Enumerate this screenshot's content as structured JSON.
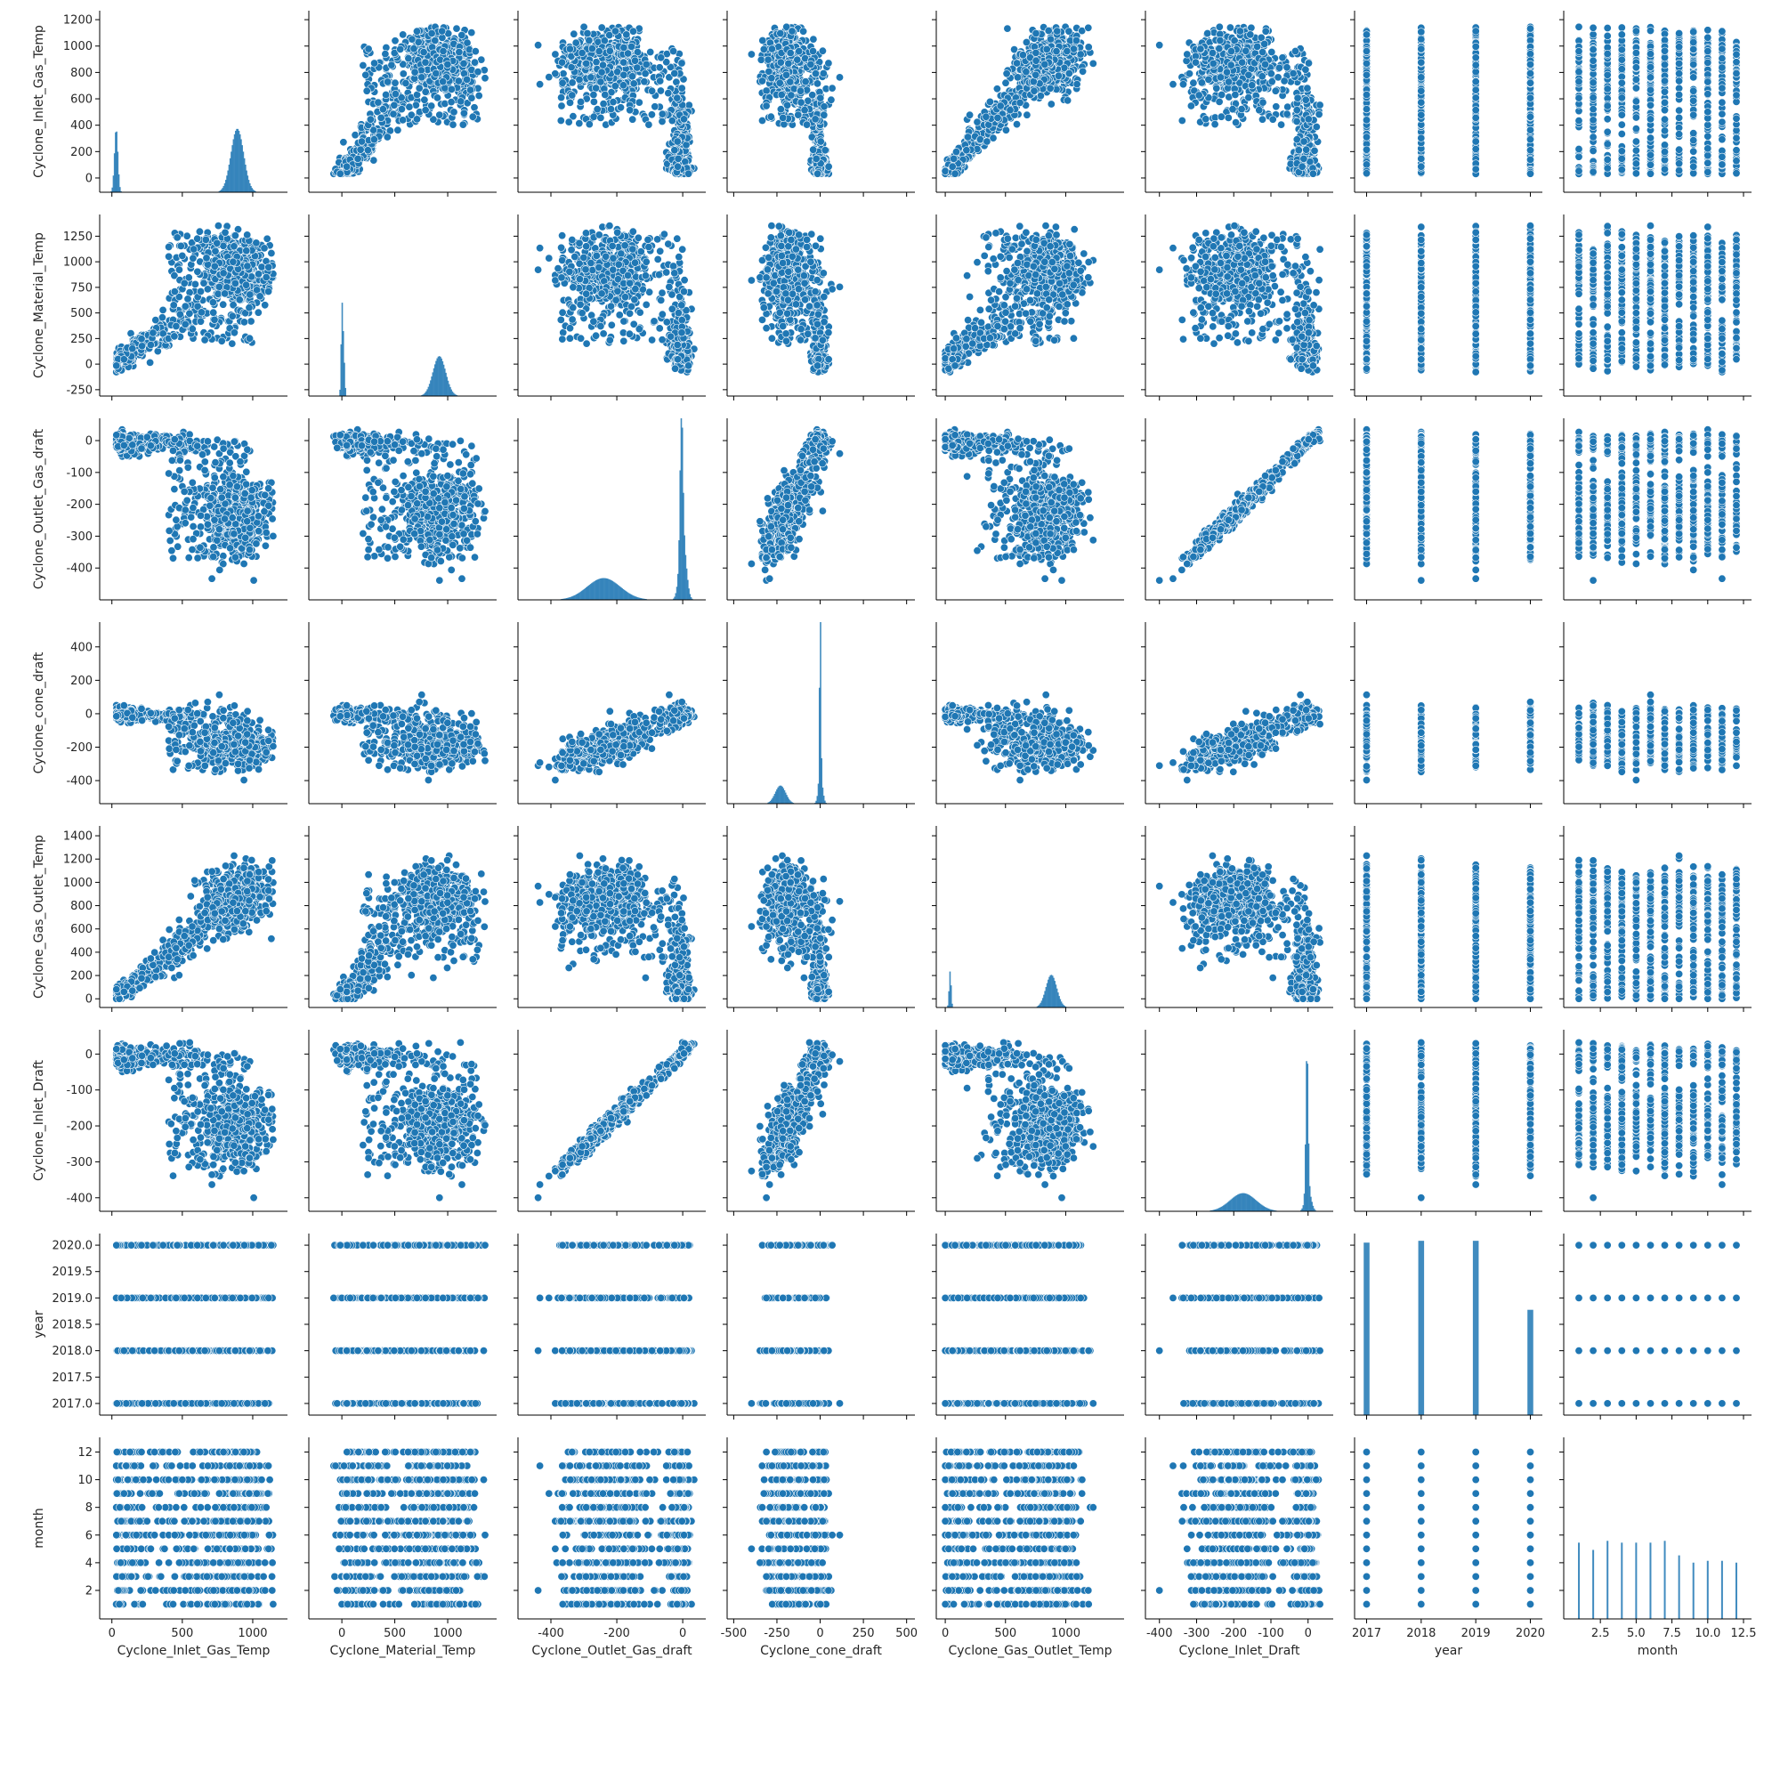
{
  "chart_data": {
    "type": "scatter",
    "grid": false,
    "colors": {
      "marker": "#1f77b4",
      "marker_edge": "#ffffff"
    },
    "variables": [
      {
        "name": "Cyclone_Inlet_Gas_Temp",
        "range": [
          -40,
          1200
        ],
        "ticks": [
          0,
          500,
          1000
        ],
        "y_range": [
          -60,
          1220
        ],
        "y_ticks": [
          0,
          200,
          400,
          600,
          800,
          1000,
          1200
        ]
      },
      {
        "name": "Cyclone_Material_Temp",
        "range": [
          -250,
          1400
        ],
        "ticks": [
          0,
          500,
          1000
        ],
        "y_ticks": [
          -250,
          0,
          250,
          500,
          750,
          1000,
          1250
        ]
      },
      {
        "name": "Cyclone_Outlet_Gas_draft",
        "range": [
          -480,
          50
        ],
        "ticks": [
          -400,
          -200,
          0
        ],
        "y_ticks": [
          -400,
          -300,
          -200,
          -100,
          0
        ]
      },
      {
        "name": "Cyclone_cone_draft",
        "range": [
          -500,
          510
        ],
        "ticks": [
          -500,
          -250,
          0,
          250,
          500
        ],
        "y_ticks": [
          -400,
          -200,
          0,
          200,
          400
        ]
      },
      {
        "name": "Cyclone_Gas_Outlet_Temp",
        "range": [
          -20,
          1430
        ],
        "ticks": [
          0,
          500,
          1000
        ],
        "y_ticks": [
          0,
          200,
          400,
          600,
          800,
          1000,
          1200,
          1400
        ]
      },
      {
        "name": "Cyclone_Inlet_Draft",
        "range": [
          -420,
          50
        ],
        "ticks": [
          -400,
          -300,
          -200,
          -100,
          0
        ],
        "y_ticks": [
          -400,
          -300,
          -200,
          -100,
          0
        ]
      },
      {
        "name": "year",
        "range": [
          2016.9,
          2020.1
        ],
        "ticks": [
          2017,
          2018,
          2019,
          2020
        ],
        "y_ticks": [
          2017.0,
          2017.5,
          2018.0,
          2018.5,
          2019.0,
          2019.5,
          2020.0
        ],
        "y_tick_decimals": 1,
        "discrete": [
          2017,
          2018,
          2019,
          2020
        ]
      },
      {
        "name": "month",
        "range": [
          0.4,
          12.6
        ],
        "ticks": [
          2.5,
          5.0,
          7.5,
          10.0,
          12.5
        ],
        "tick_decimals": 1,
        "y_ticks": [
          2,
          4,
          6,
          8,
          10,
          12
        ],
        "discrete": [
          1,
          2,
          3,
          4,
          5,
          6,
          7,
          8,
          9,
          10,
          11,
          12
        ]
      }
    ],
    "diagonal": [
      {
        "variable": "Cyclone_Inlet_Gas_Temp",
        "kind": "hist",
        "peaks": [
          {
            "x": 30,
            "height": 0.35,
            "width": 12
          },
          {
            "x": 890,
            "height": 0.35,
            "width": 45
          }
        ]
      },
      {
        "variable": "Cyclone_Material_Temp",
        "kind": "hist",
        "peaks": [
          {
            "x": 0,
            "height": 0.42,
            "width": 8
          },
          {
            "x": 15,
            "height": 0.25,
            "width": 10
          },
          {
            "x": 920,
            "height": 0.22,
            "width": 60
          }
        ]
      },
      {
        "variable": "Cyclone_Outlet_Gas_draft",
        "kind": "hist",
        "peaks": [
          {
            "x": -240,
            "height": 0.12,
            "width": 50
          },
          {
            "x": -4,
            "height": 0.75,
            "width": 4
          },
          {
            "x": 0,
            "height": 0.35,
            "width": 10
          }
        ]
      },
      {
        "variable": "Cyclone_cone_draft",
        "kind": "hist",
        "peaks": [
          {
            "x": -230,
            "height": 0.1,
            "width": 30
          },
          {
            "x": 0,
            "height": 0.95,
            "width": 4
          },
          {
            "x": 2,
            "height": 0.15,
            "width": 12
          }
        ]
      },
      {
        "variable": "Cyclone_Gas_Outlet_Temp",
        "kind": "hist",
        "peaks": [
          {
            "x": 40,
            "height": 0.2,
            "width": 8
          },
          {
            "x": 880,
            "height": 0.18,
            "width": 45
          }
        ]
      },
      {
        "variable": "Cyclone_Inlet_Draft",
        "kind": "hist",
        "peaks": [
          {
            "x": -175,
            "height": 0.1,
            "width": 35
          },
          {
            "x": -3,
            "height": 0.8,
            "width": 3
          },
          {
            "x": 0,
            "height": 0.12,
            "width": 8
          }
        ]
      },
      {
        "variable": "year",
        "kind": "bars",
        "x": [
          2017,
          2018,
          2019,
          2020
        ],
        "values": [
          0.95,
          0.96,
          0.96,
          0.58
        ]
      },
      {
        "variable": "month",
        "kind": "bars",
        "x": [
          1,
          2,
          3,
          4,
          5,
          6,
          7,
          8,
          9,
          10,
          11,
          12
        ],
        "values": [
          0.42,
          0.38,
          0.43,
          0.42,
          0.42,
          0.42,
          0.43,
          0.35,
          0.31,
          0.32,
          0.32,
          0.31
        ]
      }
    ],
    "off_diagonal": "pairwise scatter of every variable against every other variable, drawn from the same multivariate sensor readings: strong positive linear relation between Cyclone_Outlet_Gas_draft and Cyclone_Inlet_Draft; year and month take discrete values"
  }
}
